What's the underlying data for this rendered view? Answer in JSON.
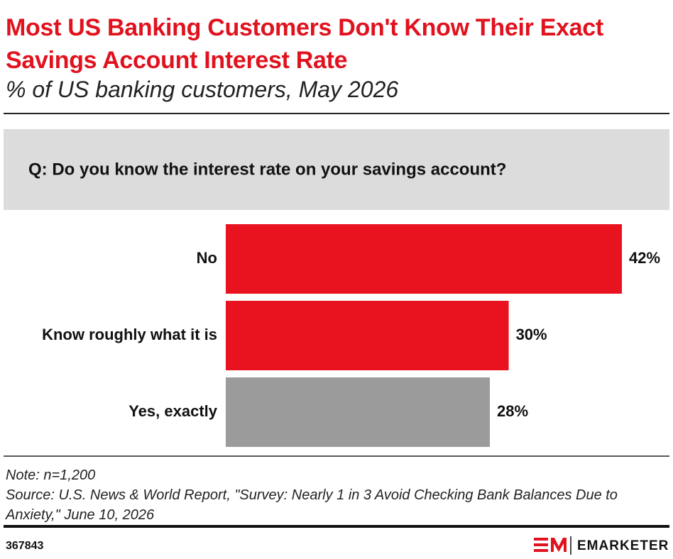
{
  "chart_data": {
    "type": "bar",
    "orientation": "horizontal",
    "title": "Most US Banking Customers Don't Know Their Exact Savings Account Interest Rate",
    "subtitle": "% of US banking customers, May 2026",
    "question": "Q: Do you know the interest rate on your savings account?",
    "categories": [
      "No",
      "Know roughly what it is",
      "Yes, exactly"
    ],
    "values": [
      42,
      30,
      28
    ],
    "value_labels": [
      "42%",
      "30%",
      "28%"
    ],
    "colors": [
      "#e8131f",
      "#e8131f",
      "#9b9b9b"
    ],
    "note": "Note: n=1,200",
    "source": "Source: U.S. News & World Report, \"Survey: Nearly 1 in 3 Avoid Checking Bank Balances Due to Anxiety,\" June 10, 2026"
  },
  "footer": {
    "id": "367843",
    "brand": "EMARKETER"
  }
}
